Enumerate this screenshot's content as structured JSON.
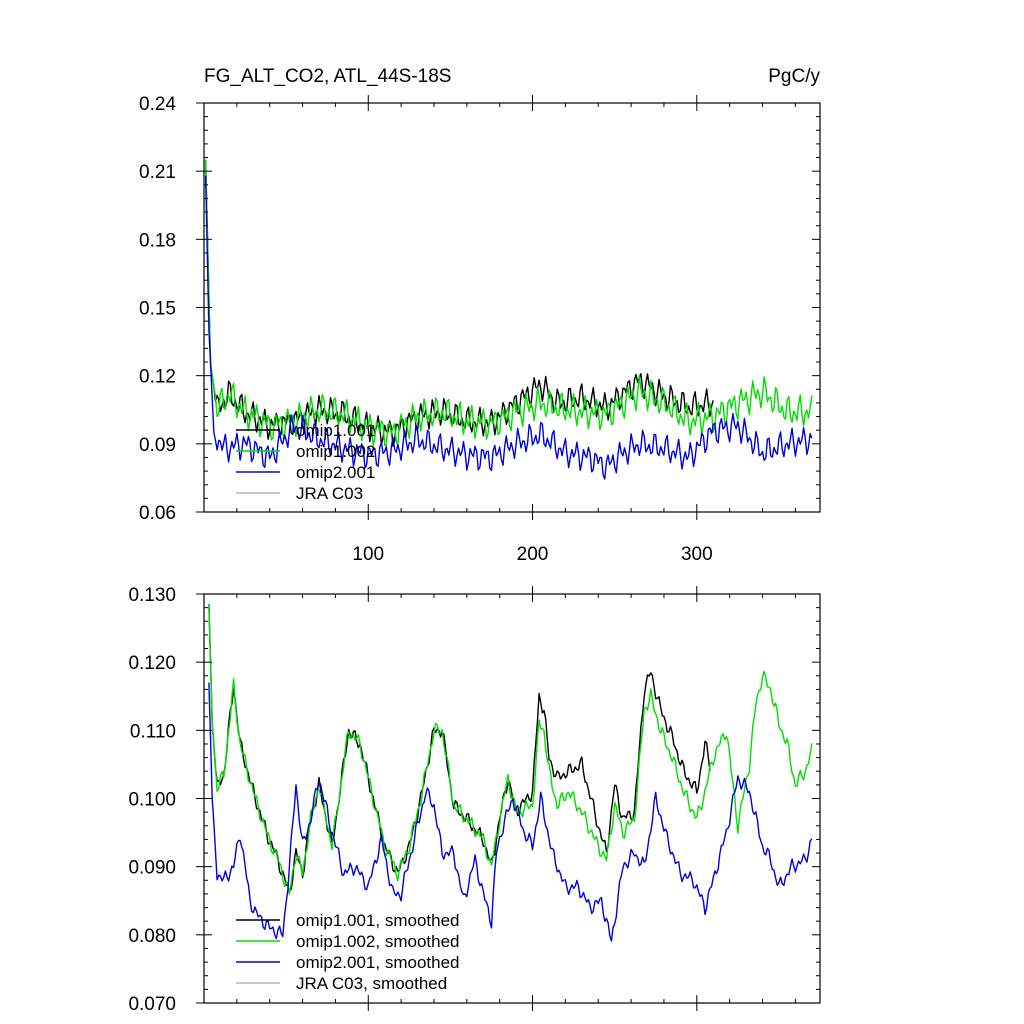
{
  "chart_data": [
    {
      "type": "line",
      "title": "FG_ALT_CO2, ATL_44S-18S",
      "units": "PgC/y",
      "xlabel": "",
      "ylabel": "",
      "xlim": [
        0,
        375
      ],
      "ylim": [
        0.06,
        0.24
      ],
      "xticks": [
        100,
        200,
        300
      ],
      "xtick_labels": [
        "100",
        "200",
        "300"
      ],
      "yticks": [
        0.06,
        0.09,
        0.12,
        0.15,
        0.18,
        0.21,
        0.24
      ],
      "ytick_labels": [
        "0.06",
        "0.09",
        "0.12",
        "0.15",
        "0.18",
        "0.21",
        "0.24"
      ],
      "legend_placement": "lower-left",
      "series": [
        {
          "name": "omip1.001",
          "color": "#000000",
          "wiggle": 0.007,
          "x": [
            1,
            4,
            8,
            15,
            25,
            40,
            55,
            70,
            85,
            100,
            115,
            130,
            145,
            160,
            175,
            190,
            205,
            215,
            230,
            245,
            255,
            265,
            280,
            295,
            310
          ],
          "y": [
            0.215,
            0.125,
            0.105,
            0.112,
            0.104,
            0.098,
            0.1,
            0.105,
            0.103,
            0.097,
            0.095,
            0.102,
            0.104,
            0.1,
            0.099,
            0.108,
            0.116,
            0.108,
            0.11,
            0.106,
            0.112,
            0.118,
            0.111,
            0.106,
            0.108
          ]
        },
        {
          "name": "omip1.002",
          "color": "#00dd00",
          "wiggle": 0.008,
          "x": [
            1,
            4,
            8,
            15,
            25,
            40,
            55,
            70,
            85,
            100,
            115,
            130,
            145,
            160,
            175,
            190,
            205,
            215,
            230,
            245,
            255,
            265,
            280,
            295,
            310,
            325,
            340,
            355,
            370
          ],
          "y": [
            0.215,
            0.125,
            0.105,
            0.112,
            0.104,
            0.098,
            0.1,
            0.105,
            0.103,
            0.097,
            0.095,
            0.102,
            0.104,
            0.1,
            0.099,
            0.104,
            0.108,
            0.106,
            0.104,
            0.103,
            0.108,
            0.113,
            0.108,
            0.1,
            0.102,
            0.108,
            0.113,
            0.104,
            0.104
          ]
        },
        {
          "name": "omip2.001",
          "color": "#0000dd",
          "wiggle": 0.007,
          "x": [
            1,
            3,
            6,
            12,
            25,
            40,
            55,
            70,
            85,
            100,
            115,
            130,
            145,
            160,
            175,
            190,
            205,
            220,
            235,
            245,
            255,
            265,
            280,
            295,
            310,
            325,
            340,
            355,
            370
          ],
          "y": [
            0.208,
            0.14,
            0.095,
            0.088,
            0.09,
            0.084,
            0.098,
            0.092,
            0.088,
            0.085,
            0.087,
            0.092,
            0.088,
            0.085,
            0.084,
            0.09,
            0.094,
            0.086,
            0.084,
            0.08,
            0.086,
            0.09,
            0.088,
            0.084,
            0.096,
            0.098,
            0.086,
            0.09,
            0.092
          ]
        },
        {
          "name": "JRA C03",
          "color": "#b4b4b4",
          "x": [],
          "y": []
        }
      ]
    },
    {
      "type": "line",
      "title": "",
      "xlabel": "",
      "ylabel": "",
      "xlim": [
        0,
        375
      ],
      "ylim": [
        0.07,
        0.13
      ],
      "xticks": [
        100,
        200,
        300
      ],
      "xtick_labels": [],
      "yticks": [
        0.07,
        0.08,
        0.09,
        0.1,
        0.11,
        0.12,
        0.13
      ],
      "ytick_labels": [
        "0.070",
        "0.080",
        "0.090",
        "0.100",
        "0.110",
        "0.120",
        "0.130"
      ],
      "legend_placement": "lower-left",
      "series": [
        {
          "name": "omip1.001, smoothed",
          "color": "#000000",
          "wiggle": 0.0012,
          "x": [
            3,
            5,
            8,
            12,
            18,
            22,
            30,
            38,
            45,
            52,
            56,
            60,
            65,
            70,
            78,
            88,
            95,
            102,
            110,
            118,
            125,
            132,
            140,
            145,
            152,
            160,
            170,
            175,
            180,
            185,
            190,
            200,
            204,
            207,
            210,
            215,
            222,
            230,
            240,
            245,
            250,
            255,
            262,
            268,
            272,
            278,
            285,
            292,
            300,
            305,
            308
          ],
          "y": [
            0.1285,
            0.111,
            0.1015,
            0.1035,
            0.1165,
            0.108,
            0.101,
            0.095,
            0.091,
            0.086,
            0.092,
            0.089,
            0.097,
            0.102,
            0.093,
            0.11,
            0.108,
            0.101,
            0.093,
            0.089,
            0.093,
            0.1,
            0.11,
            0.11,
            0.099,
            0.097,
            0.094,
            0.09,
            0.097,
            0.103,
            0.098,
            0.101,
            0.115,
            0.113,
            0.106,
            0.103,
            0.104,
            0.105,
            0.096,
            0.092,
            0.102,
            0.097,
            0.098,
            0.116,
            0.1185,
            0.113,
            0.109,
            0.104,
            0.101,
            0.108,
            0.105
          ]
        },
        {
          "name": "omip1.002, smoothed",
          "color": "#00dd00",
          "wiggle": 0.0012,
          "x": [
            3,
            5,
            8,
            12,
            18,
            22,
            30,
            38,
            45,
            52,
            56,
            60,
            65,
            70,
            78,
            88,
            95,
            102,
            110,
            118,
            125,
            132,
            140,
            145,
            152,
            160,
            170,
            175,
            180,
            185,
            190,
            200,
            204,
            207,
            210,
            215,
            222,
            230,
            240,
            245,
            250,
            255,
            262,
            268,
            272,
            278,
            285,
            292,
            300,
            305,
            310,
            318,
            325,
            332,
            336,
            340,
            345,
            350,
            355,
            360,
            366,
            370
          ],
          "y": [
            0.1285,
            0.111,
            0.1015,
            0.1035,
            0.1165,
            0.108,
            0.101,
            0.095,
            0.091,
            0.086,
            0.092,
            0.089,
            0.097,
            0.102,
            0.093,
            0.11,
            0.108,
            0.101,
            0.093,
            0.089,
            0.093,
            0.1,
            0.11,
            0.11,
            0.099,
            0.097,
            0.094,
            0.09,
            0.097,
            0.103,
            0.098,
            0.099,
            0.111,
            0.11,
            0.104,
            0.099,
            0.101,
            0.098,
            0.093,
            0.091,
            0.099,
            0.095,
            0.097,
            0.113,
            0.115,
            0.11,
            0.106,
            0.101,
            0.097,
            0.101,
            0.106,
            0.11,
            0.096,
            0.105,
            0.114,
            0.118,
            0.116,
            0.111,
            0.108,
            0.102,
            0.104,
            0.107
          ]
        },
        {
          "name": "omip2.001, smoothed",
          "color": "#0000dd",
          "wiggle": 0.0012,
          "x": [
            3,
            5,
            8,
            12,
            18,
            22,
            28,
            32,
            40,
            48,
            52,
            56,
            60,
            65,
            70,
            78,
            85,
            92,
            100,
            108,
            115,
            120,
            128,
            135,
            140,
            145,
            152,
            158,
            165,
            170,
            175,
            178,
            182,
            188,
            195,
            200,
            205,
            212,
            220,
            228,
            235,
            242,
            248,
            255,
            262,
            268,
            275,
            282,
            290,
            298,
            305,
            310,
            318,
            325,
            332,
            340,
            345,
            350,
            358,
            366,
            370
          ],
          "y": [
            0.117,
            0.1,
            0.089,
            0.088,
            0.09,
            0.095,
            0.085,
            0.083,
            0.081,
            0.08,
            0.09,
            0.102,
            0.093,
            0.097,
            0.103,
            0.095,
            0.089,
            0.09,
            0.087,
            0.094,
            0.086,
            0.086,
            0.094,
            0.101,
            0.099,
            0.092,
            0.092,
            0.085,
            0.091,
            0.086,
            0.082,
            0.092,
            0.096,
            0.1,
            0.095,
            0.093,
            0.1,
            0.092,
            0.087,
            0.087,
            0.084,
            0.085,
            0.079,
            0.09,
            0.092,
            0.09,
            0.1,
            0.094,
            0.089,
            0.088,
            0.084,
            0.088,
            0.095,
            0.103,
            0.101,
            0.093,
            0.091,
            0.087,
            0.09,
            0.091,
            0.094
          ]
        },
        {
          "name": "JRA C03, smoothed",
          "color": "#b4b4b4",
          "x": [],
          "y": []
        }
      ]
    }
  ]
}
